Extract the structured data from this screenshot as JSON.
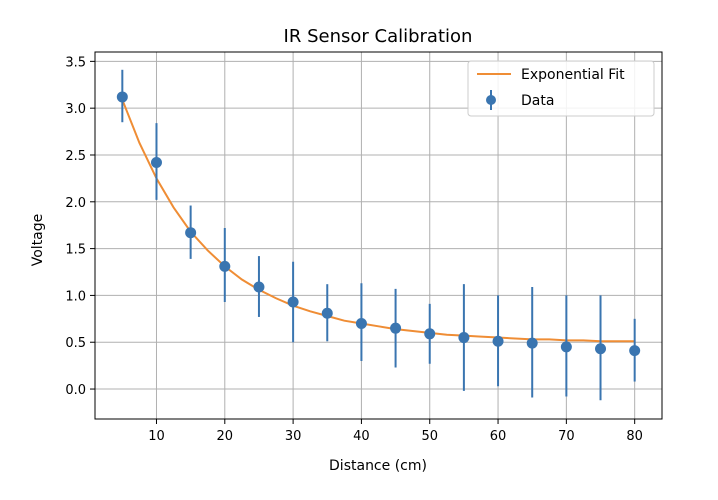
{
  "chart_data": {
    "type": "scatter",
    "title": "IR Sensor Calibration",
    "xlabel": "Distance (cm)",
    "ylabel": "Voltage",
    "xlim": [
      1,
      84
    ],
    "ylim": [
      -0.32,
      3.6
    ],
    "xticks": [
      10,
      20,
      30,
      40,
      50,
      60,
      70,
      80
    ],
    "yticks": [
      0.0,
      0.5,
      1.0,
      1.5,
      2.0,
      2.5,
      3.0,
      3.5
    ],
    "xtick_labels": [
      "10",
      "20",
      "30",
      "40",
      "50",
      "60",
      "70",
      "80"
    ],
    "ytick_labels": [
      "0.0",
      "0.5",
      "1.0",
      "1.5",
      "2.0",
      "2.5",
      "3.0",
      "3.5"
    ],
    "grid": true,
    "legend_position": "top-right",
    "series": [
      {
        "name": "Data",
        "kind": "errorbar",
        "color": "#3a75b0",
        "x": [
          5,
          10,
          15,
          20,
          25,
          30,
          35,
          40,
          45,
          50,
          55,
          60,
          65,
          70,
          75,
          80
        ],
        "y": [
          3.12,
          2.42,
          1.67,
          1.31,
          1.09,
          0.93,
          0.81,
          0.7,
          0.65,
          0.59,
          0.55,
          0.51,
          0.49,
          0.45,
          0.43,
          0.41
        ],
        "yerr_low": [
          2.85,
          2.02,
          1.39,
          0.93,
          0.77,
          0.5,
          0.51,
          0.3,
          0.23,
          0.27,
          -0.02,
          0.03,
          -0.09,
          -0.08,
          -0.12,
          0.08
        ],
        "yerr_high": [
          3.41,
          2.84,
          1.96,
          1.72,
          1.42,
          1.36,
          1.12,
          1.13,
          1.07,
          0.91,
          1.12,
          1.0,
          1.09,
          1.0,
          1.0,
          0.75
        ]
      },
      {
        "name": "Exponential Fit",
        "kind": "line",
        "color": "#ef8d35",
        "x": [
          5,
          7.5,
          10,
          12.5,
          15,
          17.5,
          20,
          22.5,
          25,
          27.5,
          30,
          32.5,
          35,
          37.5,
          40,
          42.5,
          45,
          47.5,
          50,
          52.5,
          55,
          57.5,
          60,
          62.5,
          65,
          67.5,
          70,
          72.5,
          75,
          77.5,
          80
        ],
        "y": [
          3.09,
          2.63,
          2.25,
          1.94,
          1.68,
          1.48,
          1.31,
          1.17,
          1.06,
          0.97,
          0.89,
          0.83,
          0.78,
          0.73,
          0.7,
          0.67,
          0.64,
          0.62,
          0.6,
          0.58,
          0.57,
          0.56,
          0.55,
          0.54,
          0.53,
          0.53,
          0.52,
          0.52,
          0.51,
          0.51,
          0.51
        ]
      }
    ]
  },
  "legend": {
    "fit_label": "Exponential Fit",
    "data_label": "Data"
  }
}
